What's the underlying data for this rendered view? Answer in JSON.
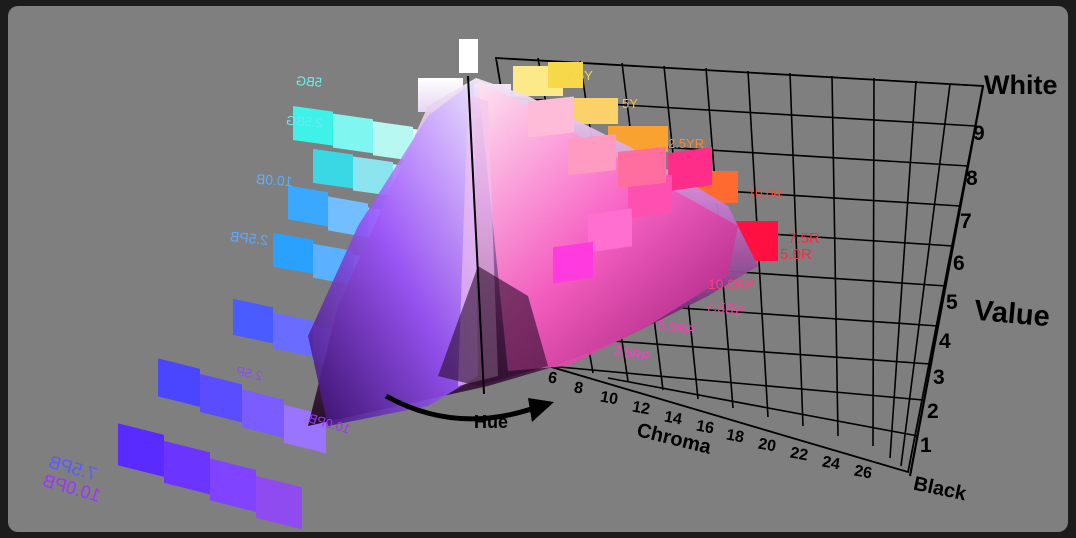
{
  "axes": {
    "value_title": "Value",
    "top_label": "White",
    "bottom_label": "Black",
    "chroma_title": "Chroma",
    "hue_title": "Hue",
    "value_ticks": [
      "1",
      "2",
      "3",
      "4",
      "5",
      "6",
      "7",
      "8",
      "9"
    ],
    "chroma_ticks": [
      "6",
      "8",
      "10",
      "12",
      "14",
      "16",
      "18",
      "20",
      "22",
      "24",
      "26"
    ]
  },
  "hue_labels": {
    "right_side": [
      "7.5Y",
      "5Y",
      "2.5YR",
      "10.0R",
      "7.5R",
      "5.0R",
      "10.0RP",
      "7.5RP",
      "5.0RP",
      "2.5RP"
    ],
    "left_side": [
      "5BG",
      "2.5BG",
      "10.0B",
      "2.5PB",
      "10.0PB",
      "2.5P",
      "7.5PB",
      "10.0PB"
    ]
  },
  "colors": {
    "background": "#7f7f7f",
    "frame": "#1c1c1c",
    "grid": "#000000",
    "blue_label": "#5a5aff",
    "purple_label": "#9b35ff",
    "pink_label": "#ff3aa8",
    "red_label": "#ff2a3a"
  }
}
